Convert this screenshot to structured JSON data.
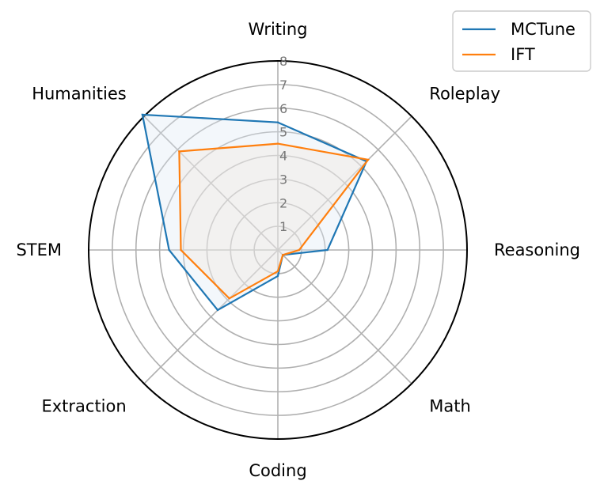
{
  "chart_data": {
    "type": "radar",
    "categories": [
      "Writing",
      "Roleplay",
      "Reasoning",
      "Math",
      "Coding",
      "Extraction",
      "STEM",
      "Humanities"
    ],
    "rmax": 8,
    "rticks": [
      "1",
      "2",
      "3",
      "4",
      "5",
      "6",
      "7",
      "8"
    ],
    "grid": true,
    "legend": "top-right",
    "series": [
      {
        "name": "MCTune",
        "color": "#1f77b4",
        "fill": "#dde8f3",
        "values": [
          5.4,
          5.3,
          2.1,
          0.3,
          1.1,
          3.6,
          4.6,
          8.1
        ]
      },
      {
        "name": "IFT",
        "color": "#ff7f0e",
        "fill": "#f2e6dd",
        "values": [
          4.5,
          5.4,
          0.9,
          0.3,
          0.9,
          2.9,
          4.1,
          5.9
        ]
      }
    ]
  }
}
